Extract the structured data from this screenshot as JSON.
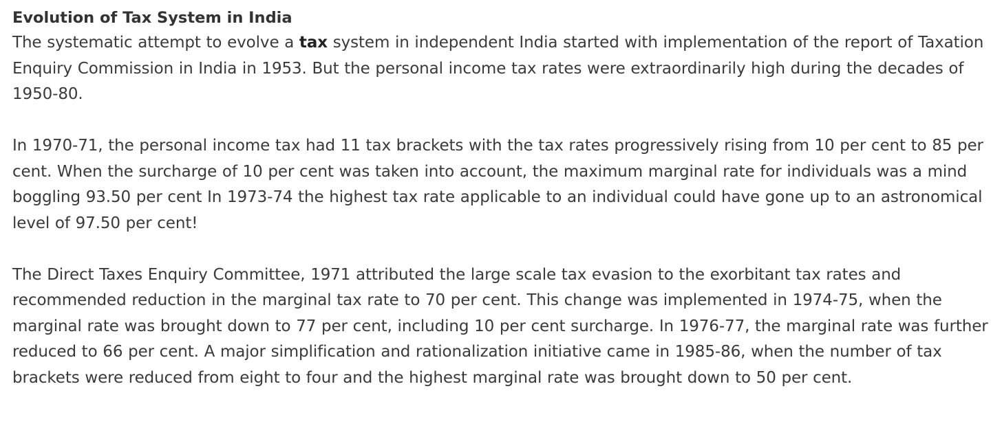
{
  "article": {
    "heading": "Evolution of Tax System in India",
    "paragraph1": {
      "before_bold": "The systematic attempt to evolve a ",
      "bold": "tax",
      "after_bold": " system in independent India started with implementation of the report of Taxation Enquiry Commission in India in 1953. But the personal income tax rates were extraordinarily high during the decades of 1950-80."
    },
    "paragraph2": "In 1970-71, the personal income tax had 11 tax brackets with the tax rates progressively rising from 10 per cent to 85 per cent. When the surcharge of 10 per cent was taken into account, the maximum marginal rate for individuals was a mind boggling 93.50 per cent  In 1973-74 the highest tax rate applicable to an individual could have gone up to an astronomical level of 97.50 per cent!",
    "paragraph3": "The Direct Taxes Enquiry Committee, 1971 attributed the large scale tax evasion to the exorbitant tax rates and recommended reduction in the marginal tax rate to 70 per cent. This change was implemented in 1974-75, when the marginal rate was brought down to 77 per cent, including 10 per cent surcharge. In 1976-77, the marginal rate was further reduced to 66 per cent. A major simplification and rationalization initiative came in 1985-86, when the number of tax brackets were reduced from eight to four and the highest marginal rate was brought down to 50 per cent."
  }
}
